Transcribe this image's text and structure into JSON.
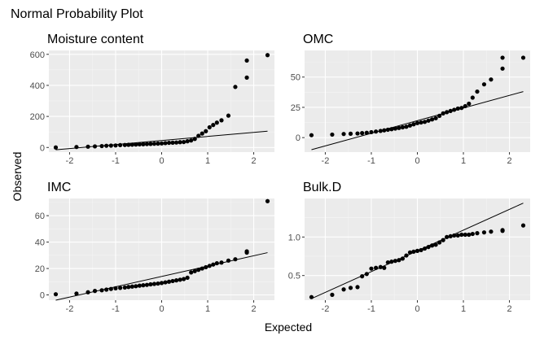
{
  "title": "Normal Probability Plot",
  "xlabel": "Expected",
  "ylabel": "Observed",
  "colors": {
    "panel_bg": "#ebebeb",
    "grid_major": "#ffffff",
    "grid_minor": "#f5f5f5",
    "point": "#000000",
    "line": "#000000",
    "tick_text": "#4d4d4d"
  },
  "chart_data": [
    {
      "type": "scatter",
      "title": "Moisture content",
      "xlim": [
        -2.45,
        2.45
      ],
      "ylim": [
        -30,
        625
      ],
      "xticks": [
        -2,
        -1,
        0,
        1,
        2
      ],
      "yticks": [
        0,
        200,
        400,
        600
      ],
      "reference_line": {
        "x": [
          -2.3,
          2.3
        ],
        "y": [
          -15,
          105
        ]
      },
      "points": [
        [
          -2.3,
          0
        ],
        [
          -1.85,
          3
        ],
        [
          -1.6,
          5
        ],
        [
          -1.45,
          7
        ],
        [
          -1.3,
          9
        ],
        [
          -1.2,
          11
        ],
        [
          -1.1,
          12
        ],
        [
          -1.0,
          13
        ],
        [
          -0.9,
          15
        ],
        [
          -0.8,
          16
        ],
        [
          -0.72,
          17
        ],
        [
          -0.64,
          18
        ],
        [
          -0.56,
          19
        ],
        [
          -0.48,
          20
        ],
        [
          -0.4,
          21
        ],
        [
          -0.32,
          22
        ],
        [
          -0.24,
          23
        ],
        [
          -0.16,
          24
        ],
        [
          -0.08,
          25
        ],
        [
          0.0,
          26
        ],
        [
          0.08,
          28
        ],
        [
          0.16,
          30
        ],
        [
          0.24,
          31
        ],
        [
          0.32,
          32
        ],
        [
          0.4,
          34
        ],
        [
          0.48,
          35
        ],
        [
          0.56,
          40
        ],
        [
          0.64,
          45
        ],
        [
          0.72,
          55
        ],
        [
          0.8,
          75
        ],
        [
          0.88,
          90
        ],
        [
          0.96,
          105
        ],
        [
          1.04,
          130
        ],
        [
          1.12,
          145
        ],
        [
          1.2,
          160
        ],
        [
          1.3,
          175
        ],
        [
          1.45,
          205
        ],
        [
          1.6,
          390
        ],
        [
          1.85,
          450
        ],
        [
          1.85,
          560
        ],
        [
          2.3,
          595
        ]
      ]
    },
    {
      "type": "scatter",
      "title": "OMC",
      "xlim": [
        -2.45,
        2.45
      ],
      "ylim": [
        -12,
        72
      ],
      "xticks": [
        -2,
        -1,
        0,
        1,
        2
      ],
      "yticks": [
        0,
        25,
        50
      ],
      "reference_line": {
        "x": [
          -2.3,
          2.3
        ],
        "y": [
          -10,
          38
        ]
      },
      "points": [
        [
          -2.3,
          2
        ],
        [
          -1.85,
          2.5
        ],
        [
          -1.6,
          3
        ],
        [
          -1.45,
          3.2
        ],
        [
          -1.3,
          3.4
        ],
        [
          -1.2,
          3.7
        ],
        [
          -1.1,
          4
        ],
        [
          -1.0,
          4.5
        ],
        [
          -0.9,
          5
        ],
        [
          -0.8,
          5.5
        ],
        [
          -0.72,
          6
        ],
        [
          -0.64,
          6.5
        ],
        [
          -0.56,
          7
        ],
        [
          -0.48,
          7.5
        ],
        [
          -0.4,
          8
        ],
        [
          -0.32,
          8.5
        ],
        [
          -0.24,
          9
        ],
        [
          -0.16,
          10
        ],
        [
          -0.08,
          11
        ],
        [
          0.0,
          12
        ],
        [
          0.08,
          12.5
        ],
        [
          0.16,
          13
        ],
        [
          0.24,
          14
        ],
        [
          0.32,
          15
        ],
        [
          0.4,
          16
        ],
        [
          0.48,
          18
        ],
        [
          0.56,
          20
        ],
        [
          0.64,
          21
        ],
        [
          0.72,
          22
        ],
        [
          0.8,
          23
        ],
        [
          0.88,
          24
        ],
        [
          0.96,
          24.5
        ],
        [
          1.04,
          26
        ],
        [
          1.12,
          28
        ],
        [
          1.2,
          33
        ],
        [
          1.3,
          38
        ],
        [
          1.45,
          44
        ],
        [
          1.6,
          48
        ],
        [
          1.85,
          57
        ],
        [
          1.85,
          66
        ],
        [
          2.3,
          66
        ]
      ]
    },
    {
      "type": "scatter",
      "title": "IMC",
      "xlim": [
        -2.45,
        2.45
      ],
      "ylim": [
        -4,
        73
      ],
      "xticks": [
        -2,
        -1,
        0,
        1,
        2
      ],
      "yticks": [
        0,
        20,
        40,
        60
      ],
      "reference_line": {
        "x": [
          -2.3,
          2.3
        ],
        "y": [
          -4,
          32
        ]
      },
      "points": [
        [
          -2.3,
          0.5
        ],
        [
          -1.85,
          1
        ],
        [
          -1.6,
          2
        ],
        [
          -1.45,
          3
        ],
        [
          -1.3,
          3.5
        ],
        [
          -1.2,
          4
        ],
        [
          -1.1,
          4.5
        ],
        [
          -1.0,
          5
        ],
        [
          -0.9,
          5.3
        ],
        [
          -0.8,
          5.6
        ],
        [
          -0.72,
          6
        ],
        [
          -0.64,
          6.3
        ],
        [
          -0.56,
          6.6
        ],
        [
          -0.48,
          7
        ],
        [
          -0.4,
          7.3
        ],
        [
          -0.32,
          7.6
        ],
        [
          -0.24,
          8
        ],
        [
          -0.16,
          8.3
        ],
        [
          -0.08,
          8.6
        ],
        [
          0.0,
          9
        ],
        [
          0.08,
          9.5
        ],
        [
          0.16,
          10
        ],
        [
          0.24,
          10.5
        ],
        [
          0.32,
          11
        ],
        [
          0.4,
          11.5
        ],
        [
          0.48,
          12
        ],
        [
          0.56,
          13
        ],
        [
          0.64,
          17
        ],
        [
          0.72,
          18
        ],
        [
          0.8,
          19
        ],
        [
          0.88,
          20
        ],
        [
          0.96,
          21
        ],
        [
          1.04,
          22
        ],
        [
          1.12,
          23
        ],
        [
          1.2,
          24
        ],
        [
          1.3,
          24.5
        ],
        [
          1.45,
          26
        ],
        [
          1.6,
          27
        ],
        [
          1.85,
          32
        ],
        [
          1.85,
          33
        ],
        [
          2.3,
          71
        ]
      ]
    },
    {
      "type": "scatter",
      "title": "Bulk.D",
      "xlim": [
        -2.45,
        2.45
      ],
      "ylim": [
        0.18,
        1.5
      ],
      "xticks": [
        -2,
        -1,
        0,
        1,
        2
      ],
      "yticks": [
        0.5,
        1.0
      ],
      "ytick_labels": [
        "0.5",
        "1.0"
      ],
      "reference_line": {
        "x": [
          -2.3,
          2.3
        ],
        "y": [
          0.2,
          1.44
        ]
      },
      "points": [
        [
          -2.3,
          0.22
        ],
        [
          -1.85,
          0.25
        ],
        [
          -1.6,
          0.32
        ],
        [
          -1.45,
          0.34
        ],
        [
          -1.3,
          0.35
        ],
        [
          -1.2,
          0.49
        ],
        [
          -1.1,
          0.52
        ],
        [
          -1.0,
          0.59
        ],
        [
          -0.9,
          0.6
        ],
        [
          -0.8,
          0.61
        ],
        [
          -0.72,
          0.6
        ],
        [
          -0.64,
          0.67
        ],
        [
          -0.56,
          0.68
        ],
        [
          -0.48,
          0.69
        ],
        [
          -0.4,
          0.7
        ],
        [
          -0.32,
          0.72
        ],
        [
          -0.24,
          0.76
        ],
        [
          -0.16,
          0.8
        ],
        [
          -0.08,
          0.81
        ],
        [
          0.0,
          0.82
        ],
        [
          0.08,
          0.83
        ],
        [
          0.16,
          0.85
        ],
        [
          0.24,
          0.87
        ],
        [
          0.32,
          0.89
        ],
        [
          0.4,
          0.9
        ],
        [
          0.48,
          0.93
        ],
        [
          0.56,
          0.96
        ],
        [
          0.64,
          1.0
        ],
        [
          0.72,
          1.01
        ],
        [
          0.8,
          1.02
        ],
        [
          0.88,
          1.02
        ],
        [
          0.96,
          1.03
        ],
        [
          1.04,
          1.03
        ],
        [
          1.12,
          1.03
        ],
        [
          1.2,
          1.04
        ],
        [
          1.3,
          1.05
        ],
        [
          1.45,
          1.06
        ],
        [
          1.6,
          1.07
        ],
        [
          1.85,
          1.08
        ],
        [
          1.85,
          1.09
        ],
        [
          2.3,
          1.15
        ]
      ]
    }
  ]
}
